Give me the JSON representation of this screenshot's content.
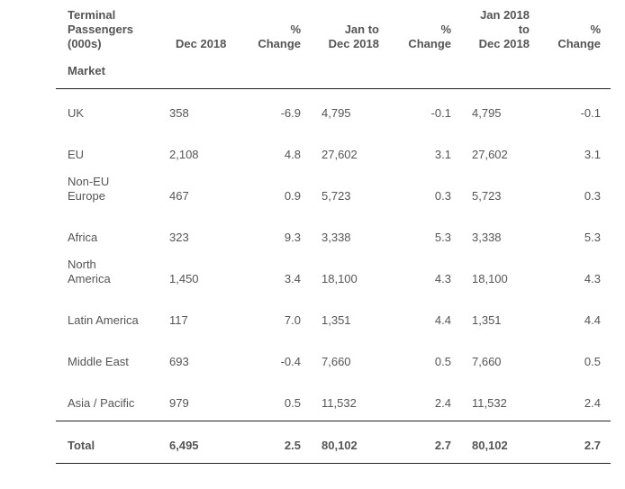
{
  "header": {
    "market_title_line1": "Terminal",
    "market_title_line2": "Passengers",
    "market_title_line3": "(000s)",
    "market_label": "Market",
    "col_dec2018": "Dec 2018",
    "col_change1_l1": "%",
    "col_change1_l2": "Change",
    "col_jan_dec_l1": "Jan to",
    "col_jan_dec_l2": "Dec 2018",
    "col_change2_l1": "%",
    "col_change2_l2": "Change",
    "col_jan2018_l1": "Jan 2018",
    "col_jan2018_l2": "to",
    "col_jan2018_l3": "Dec 2018",
    "col_change3_l1": "%",
    "col_change3_l2": "Change"
  },
  "rows": [
    {
      "market": [
        "UK"
      ],
      "dec2018": "358",
      "chg1": "-6.9",
      "jandec": "4,795",
      "chg2": "-0.1",
      "jan2018": "4,795",
      "chg3": "-0.1"
    },
    {
      "market": [
        "EU"
      ],
      "dec2018": "2,108",
      "chg1": "4.8",
      "jandec": "27,602",
      "chg2": "3.1",
      "jan2018": "27,602",
      "chg3": "3.1"
    },
    {
      "market": [
        "Non-EU",
        "Europe"
      ],
      "dec2018": "467",
      "chg1": "0.9",
      "jandec": "5,723",
      "chg2": "0.3",
      "jan2018": "5,723",
      "chg3": "0.3"
    },
    {
      "market": [
        "Africa"
      ],
      "dec2018": "323",
      "chg1": "9.3",
      "jandec": "3,338",
      "chg2": "5.3",
      "jan2018": "3,338",
      "chg3": "5.3"
    },
    {
      "market": [
        "North",
        "America"
      ],
      "dec2018": "1,450",
      "chg1": "3.4",
      "jandec": "18,100",
      "chg2": "4.3",
      "jan2018": "18,100",
      "chg3": "4.3"
    },
    {
      "market": [
        "Latin America"
      ],
      "dec2018": "117",
      "chg1": "7.0",
      "jandec": "1,351",
      "chg2": "4.4",
      "jan2018": "1,351",
      "chg3": "4.4"
    },
    {
      "market": [
        "Middle East"
      ],
      "dec2018": "693",
      "chg1": "-0.4",
      "jandec": "7,660",
      "chg2": "0.5",
      "jan2018": "7,660",
      "chg3": "0.5"
    },
    {
      "market": [
        "Asia / Pacific"
      ],
      "dec2018": "979",
      "chg1": "0.5",
      "jandec": "11,532",
      "chg2": "2.4",
      "jan2018": "11,532",
      "chg3": "2.4"
    }
  ],
  "total": {
    "market": "Total",
    "dec2018": "6,495",
    "chg1": "2.5",
    "jandec": "80,102",
    "chg2": "2.7",
    "jan2018": "80,102",
    "chg3": "2.7"
  }
}
